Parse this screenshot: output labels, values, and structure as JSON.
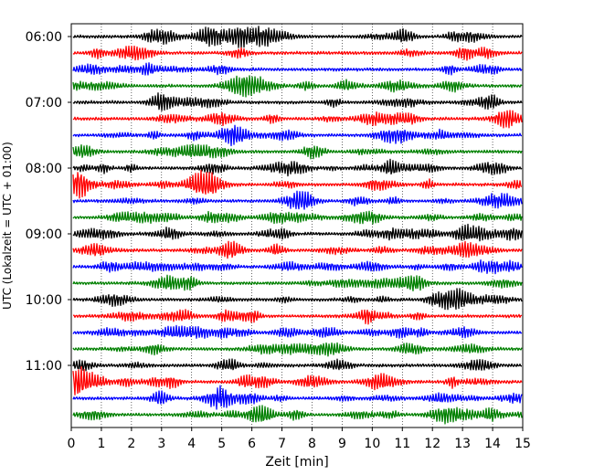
{
  "chart_data": {
    "type": "line",
    "title": "",
    "xlabel": "Zeit  [min]",
    "ylabel": "UTC (Lokalzeit = UTC + 01:00)",
    "xlim": [
      0,
      15
    ],
    "x_ticks": [
      "0",
      "1",
      "2",
      "3",
      "4",
      "5",
      "6",
      "7",
      "8",
      "9",
      "10",
      "11",
      "12",
      "13",
      "14",
      "15"
    ],
    "y_tick_labels": [
      "06:00",
      "07:00",
      "08:00",
      "09:00",
      "10:00",
      "11:00"
    ],
    "grid": "vertical dotted at each minute",
    "trace_color_cycle": [
      "#000000",
      "#ff0000",
      "#0000ff",
      "#008000"
    ],
    "traces": [
      {
        "start_time": "06:00",
        "color": "#000000"
      },
      {
        "start_time": "06:15",
        "color": "#ff0000"
      },
      {
        "start_time": "06:30",
        "color": "#0000ff"
      },
      {
        "start_time": "06:45",
        "color": "#008000"
      },
      {
        "start_time": "07:00",
        "color": "#000000"
      },
      {
        "start_time": "07:15",
        "color": "#ff0000"
      },
      {
        "start_time": "07:30",
        "color": "#0000ff"
      },
      {
        "start_time": "07:45",
        "color": "#008000"
      },
      {
        "start_time": "08:00",
        "color": "#000000"
      },
      {
        "start_time": "08:15",
        "color": "#ff0000"
      },
      {
        "start_time": "08:30",
        "color": "#0000ff"
      },
      {
        "start_time": "08:45",
        "color": "#008000"
      },
      {
        "start_time": "09:00",
        "color": "#000000"
      },
      {
        "start_time": "09:15",
        "color": "#ff0000"
      },
      {
        "start_time": "09:30",
        "color": "#0000ff"
      },
      {
        "start_time": "09:45",
        "color": "#008000"
      },
      {
        "start_time": "10:00",
        "color": "#000000"
      },
      {
        "start_time": "10:15",
        "color": "#ff0000"
      },
      {
        "start_time": "10:30",
        "color": "#0000ff"
      },
      {
        "start_time": "10:45",
        "color": "#008000"
      },
      {
        "start_time": "11:00",
        "color": "#000000"
      },
      {
        "start_time": "11:15",
        "color": "#ff0000"
      },
      {
        "start_time": "11:30",
        "color": "#0000ff"
      },
      {
        "start_time": "11:45",
        "color": "#008000"
      }
    ]
  }
}
